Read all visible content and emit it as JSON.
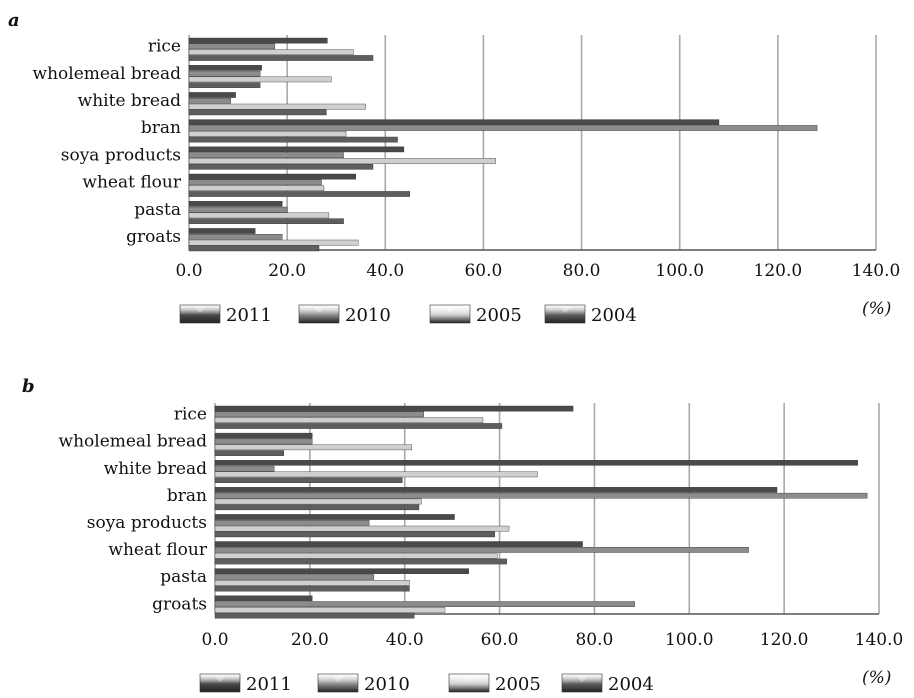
{
  "chart_data": [
    {
      "panel": "a",
      "type": "bar",
      "orientation": "horizontal",
      "categories": [
        "rice",
        "wholemeal bread",
        "white bread",
        "bran",
        "soya products",
        "wheat flour",
        "pasta",
        "groats"
      ],
      "series": [
        {
          "name": "2011",
          "values": [
            28.2,
            14.8,
            9.5,
            108.0,
            43.8,
            34.0,
            19.0,
            13.5
          ]
        },
        {
          "name": "2010",
          "values": [
            17.5,
            14.5,
            8.5,
            128.0,
            31.5,
            27.0,
            20.0,
            19.0
          ]
        },
        {
          "name": "2005",
          "values": [
            33.5,
            29.0,
            36.0,
            32.0,
            62.5,
            27.5,
            28.5,
            34.5
          ]
        },
        {
          "name": "2004",
          "values": [
            37.5,
            14.5,
            28.0,
            42.5,
            37.5,
            45.0,
            31.5,
            26.5
          ]
        }
      ],
      "xlim": [
        0,
        140
      ],
      "xticks": [
        "0.0",
        "20.0",
        "40.0",
        "60.0",
        "80.0",
        "100.0",
        "120.0",
        "140.0"
      ],
      "unit_label": "(%)",
      "grid": true,
      "legend": "bottom"
    },
    {
      "panel": "b",
      "type": "bar",
      "orientation": "horizontal",
      "categories": [
        "rice",
        "wholemeal bread",
        "white bread",
        "bran",
        "soya products",
        "wheat flour",
        "pasta",
        "groats"
      ],
      "series": [
        {
          "name": "2011",
          "values": [
            75.5,
            20.5,
            135.5,
            118.5,
            50.5,
            77.5,
            53.5,
            20.5
          ]
        },
        {
          "name": "2010",
          "values": [
            44.0,
            20.5,
            12.5,
            137.5,
            32.5,
            112.5,
            33.5,
            88.5
          ]
        },
        {
          "name": "2005",
          "values": [
            56.5,
            41.5,
            68.0,
            43.5,
            62.0,
            59.5,
            41.0,
            48.5
          ]
        },
        {
          "name": "2004",
          "values": [
            60.5,
            14.5,
            39.5,
            43.0,
            59.0,
            61.5,
            41.0,
            42.0
          ]
        }
      ],
      "xlim": [
        0,
        140
      ],
      "xticks": [
        "0.0",
        "20.0",
        "40.0",
        "60.0",
        "80.0",
        "100.0",
        "120.0",
        "140.0"
      ],
      "unit_label": "(%)",
      "grid": true,
      "legend": "bottom"
    }
  ],
  "panels": {
    "a": "a",
    "b": "b"
  },
  "colors": {
    "2011": "#4a4a4a",
    "2010": "#8c8c8c",
    "2005": "#cfcfcf",
    "2004": "#5e5e5e",
    "grid": "#a9a9a9",
    "axis": "#555555"
  }
}
